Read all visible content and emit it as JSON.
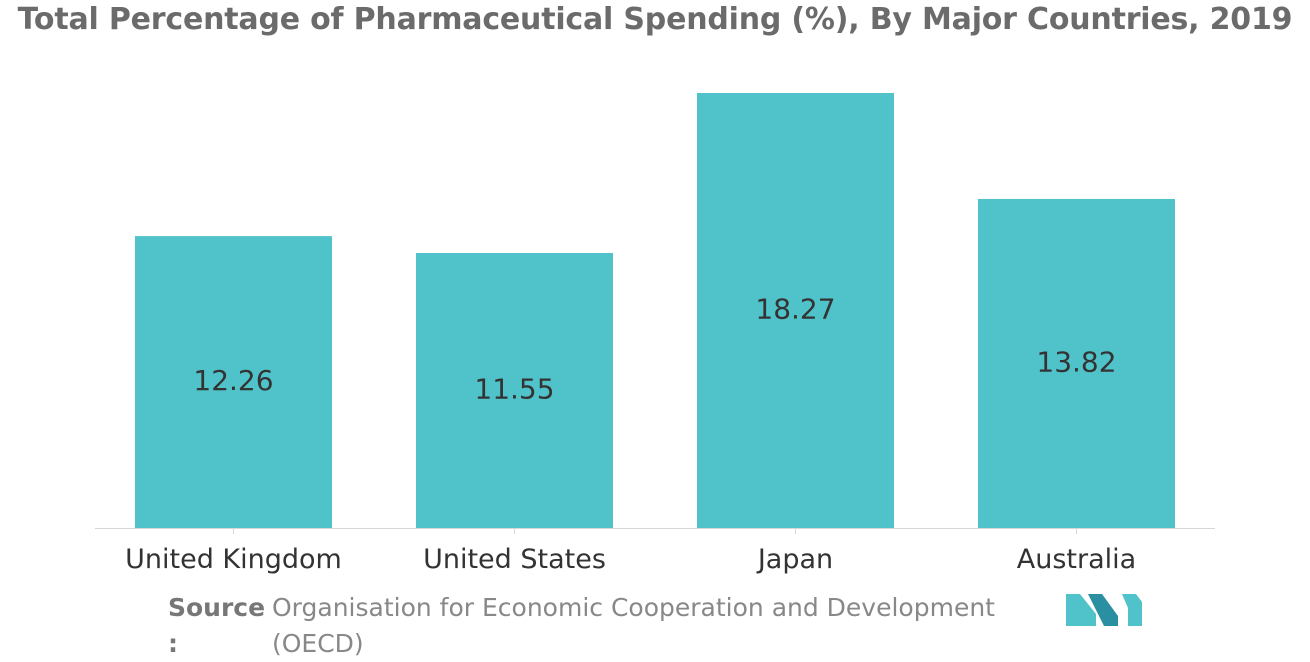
{
  "title": "Total Percentage of Pharmaceutical Spending (%), By Major Countries, 2019",
  "source": {
    "label": "Source :",
    "text": "Organisation for Economic Cooperation and Development (OECD)"
  },
  "colors": {
    "bar": "#4fc3c9",
    "axis": "#d6d6d6",
    "label": "#333333",
    "logo": "#4fc3c9"
  },
  "logo_icon": "mordor-intelligence-logo-icon",
  "chart_data": {
    "type": "bar",
    "title": "Total Percentage of Pharmaceutical Spending (%), By Major Countries, 2019",
    "xlabel": "",
    "ylabel": "",
    "categories": [
      "United Kingdom",
      "United States",
      "Japan",
      "Australia"
    ],
    "values": [
      12.26,
      11.55,
      18.27,
      13.82
    ],
    "value_labels": [
      "12.26",
      "11.55",
      "18.27",
      "13.82"
    ],
    "ylim": [
      0,
      18.27
    ],
    "grid": false,
    "legend": "none"
  }
}
